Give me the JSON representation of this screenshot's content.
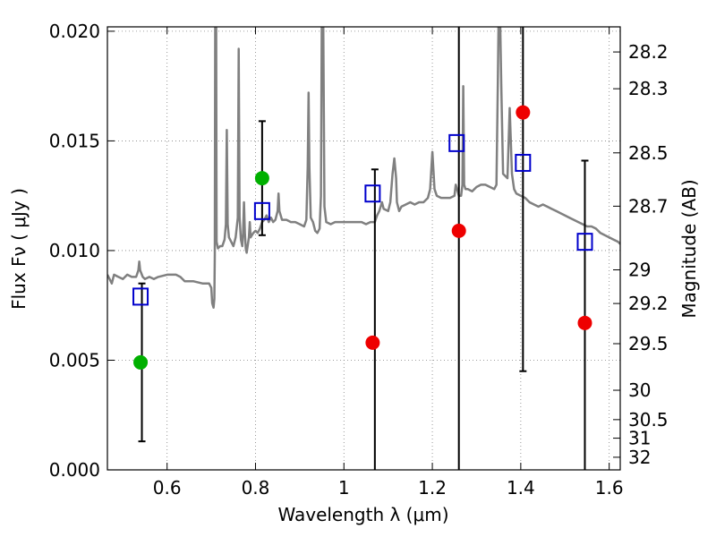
{
  "chart_data": {
    "type": "scatter",
    "xlabel": "Wavelength  λ (μm)",
    "ylabel": "Flux  Fν  ( μJy )",
    "y2label": "Magnitude (AB)",
    "xlim": [
      0.465,
      1.625
    ],
    "ylim": [
      0.0,
      0.0202
    ],
    "grid": true,
    "x_ticks": [
      0.6,
      0.8,
      1.0,
      1.2,
      1.4,
      1.6
    ],
    "x_tick_labels": [
      "0.6",
      "0.8",
      "1",
      "1.2",
      "1.4",
      "1.6"
    ],
    "y_ticks": [
      0.0,
      0.005,
      0.01,
      0.015,
      0.02
    ],
    "y_tick_labels": [
      "0.000",
      "0.005",
      "0.010",
      "0.015",
      "0.020"
    ],
    "mag_ticks": [
      {
        "mag": 28.2,
        "label": "28.2"
      },
      {
        "mag": 28.3,
        "label": "28.3"
      },
      {
        "mag": 28.5,
        "label": "28.5"
      },
      {
        "mag": 28.7,
        "label": "28.7"
      },
      {
        "mag": 29.0,
        "label": "29"
      },
      {
        "mag": 29.2,
        "label": "29.2"
      },
      {
        "mag": 29.5,
        "label": "29.5"
      },
      {
        "mag": 30.0,
        "label": "30"
      },
      {
        "mag": 30.5,
        "label": "30.5"
      },
      {
        "mag": 31.0,
        "label": "31"
      },
      {
        "mag": 32.0,
        "label": "32"
      }
    ],
    "colors": {
      "model": "#808080",
      "model_photometry": "#0000cc",
      "detection": "#00b000",
      "non_detection": "#ee0000",
      "errorbar": "#000000",
      "grid": "#808080"
    },
    "series": [
      {
        "name": "model spectrum",
        "type": "line",
        "points": [
          [
            0.465,
            0.0089
          ],
          [
            0.47,
            0.0087
          ],
          [
            0.475,
            0.0085
          ],
          [
            0.48,
            0.0089
          ],
          [
            0.49,
            0.0088
          ],
          [
            0.5,
            0.0087
          ],
          [
            0.51,
            0.0089
          ],
          [
            0.52,
            0.0088
          ],
          [
            0.53,
            0.0088
          ],
          [
            0.535,
            0.0091
          ],
          [
            0.537,
            0.0095
          ],
          [
            0.539,
            0.0091
          ],
          [
            0.545,
            0.0088
          ],
          [
            0.55,
            0.0087
          ],
          [
            0.56,
            0.0088
          ],
          [
            0.57,
            0.0087
          ],
          [
            0.58,
            0.0088
          ],
          [
            0.6,
            0.0089
          ],
          [
            0.62,
            0.0089
          ],
          [
            0.63,
            0.0088
          ],
          [
            0.64,
            0.0086
          ],
          [
            0.66,
            0.0086
          ],
          [
            0.68,
            0.0085
          ],
          [
            0.695,
            0.0085
          ],
          [
            0.7,
            0.0083
          ],
          [
            0.702,
            0.0076
          ],
          [
            0.705,
            0.0074
          ],
          [
            0.707,
            0.0078
          ],
          [
            0.708,
            0.0098
          ],
          [
            0.709,
            0.021
          ],
          [
            0.711,
            0.021
          ],
          [
            0.712,
            0.0104
          ],
          [
            0.715,
            0.0101
          ],
          [
            0.72,
            0.0102
          ],
          [
            0.725,
            0.0102
          ],
          [
            0.73,
            0.0105
          ],
          [
            0.733,
            0.0112
          ],
          [
            0.735,
            0.0155
          ],
          [
            0.737,
            0.0112
          ],
          [
            0.74,
            0.0106
          ],
          [
            0.745,
            0.0104
          ],
          [
            0.75,
            0.0102
          ],
          [
            0.755,
            0.0106
          ],
          [
            0.76,
            0.0115
          ],
          [
            0.762,
            0.0192
          ],
          [
            0.764,
            0.0115
          ],
          [
            0.767,
            0.0105
          ],
          [
            0.77,
            0.0102
          ],
          [
            0.772,
            0.0108
          ],
          [
            0.774,
            0.0122
          ],
          [
            0.776,
            0.0108
          ],
          [
            0.778,
            0.0101
          ],
          [
            0.78,
            0.0099
          ],
          [
            0.785,
            0.0106
          ],
          [
            0.787,
            0.0113
          ],
          [
            0.789,
            0.0106
          ],
          [
            0.795,
            0.0108
          ],
          [
            0.8,
            0.0109
          ],
          [
            0.805,
            0.0108
          ],
          [
            0.81,
            0.011
          ],
          [
            0.815,
            0.0113
          ],
          [
            0.82,
            0.0114
          ],
          [
            0.825,
            0.0116
          ],
          [
            0.83,
            0.0113
          ],
          [
            0.835,
            0.0115
          ],
          [
            0.84,
            0.0113
          ],
          [
            0.845,
            0.0114
          ],
          [
            0.85,
            0.0118
          ],
          [
            0.852,
            0.0126
          ],
          [
            0.854,
            0.0118
          ],
          [
            0.86,
            0.0114
          ],
          [
            0.87,
            0.0114
          ],
          [
            0.88,
            0.0113
          ],
          [
            0.89,
            0.0113
          ],
          [
            0.9,
            0.0112
          ],
          [
            0.91,
            0.0111
          ],
          [
            0.915,
            0.0114
          ],
          [
            0.918,
            0.0138
          ],
          [
            0.92,
            0.0172
          ],
          [
            0.922,
            0.0138
          ],
          [
            0.925,
            0.0115
          ],
          [
            0.93,
            0.0113
          ],
          [
            0.935,
            0.0109
          ],
          [
            0.94,
            0.0108
          ],
          [
            0.945,
            0.011
          ],
          [
            0.948,
            0.0125
          ],
          [
            0.95,
            0.021
          ],
          [
            0.953,
            0.021
          ],
          [
            0.956,
            0.012
          ],
          [
            0.96,
            0.0113
          ],
          [
            0.97,
            0.0112
          ],
          [
            0.98,
            0.0113
          ],
          [
            0.99,
            0.0113
          ],
          [
            1.0,
            0.0113
          ],
          [
            1.02,
            0.0113
          ],
          [
            1.04,
            0.0113
          ],
          [
            1.05,
            0.0112
          ],
          [
            1.06,
            0.0113
          ],
          [
            1.07,
            0.0113
          ],
          [
            1.075,
            0.0116
          ],
          [
            1.08,
            0.0118
          ],
          [
            1.083,
            0.012
          ],
          [
            1.086,
            0.0122
          ],
          [
            1.09,
            0.0119
          ],
          [
            1.1,
            0.0118
          ],
          [
            1.105,
            0.0122
          ],
          [
            1.11,
            0.0135
          ],
          [
            1.114,
            0.0142
          ],
          [
            1.118,
            0.0133
          ],
          [
            1.12,
            0.0122
          ],
          [
            1.125,
            0.0118
          ],
          [
            1.13,
            0.012
          ],
          [
            1.14,
            0.0121
          ],
          [
            1.15,
            0.0122
          ],
          [
            1.16,
            0.0121
          ],
          [
            1.17,
            0.0122
          ],
          [
            1.18,
            0.0122
          ],
          [
            1.19,
            0.0124
          ],
          [
            1.195,
            0.0128
          ],
          [
            1.2,
            0.0145
          ],
          [
            1.205,
            0.0128
          ],
          [
            1.21,
            0.0125
          ],
          [
            1.22,
            0.0124
          ],
          [
            1.23,
            0.0124
          ],
          [
            1.24,
            0.0124
          ],
          [
            1.25,
            0.0125
          ],
          [
            1.253,
            0.013
          ],
          [
            1.256,
            0.0128
          ],
          [
            1.26,
            0.0125
          ],
          [
            1.265,
            0.0125
          ],
          [
            1.268,
            0.013
          ],
          [
            1.27,
            0.0175
          ],
          [
            1.272,
            0.013
          ],
          [
            1.275,
            0.0128
          ],
          [
            1.28,
            0.0128
          ],
          [
            1.29,
            0.0127
          ],
          [
            1.3,
            0.0129
          ],
          [
            1.31,
            0.013
          ],
          [
            1.32,
            0.013
          ],
          [
            1.33,
            0.0129
          ],
          [
            1.34,
            0.0128
          ],
          [
            1.345,
            0.013
          ],
          [
            1.348,
            0.0175
          ],
          [
            1.35,
            0.021
          ],
          [
            1.353,
            0.021
          ],
          [
            1.356,
            0.0175
          ],
          [
            1.36,
            0.0135
          ],
          [
            1.37,
            0.0133
          ],
          [
            1.375,
            0.0165
          ],
          [
            1.38,
            0.0135
          ],
          [
            1.385,
            0.0128
          ],
          [
            1.39,
            0.0126
          ],
          [
            1.4,
            0.0125
          ],
          [
            1.41,
            0.0124
          ],
          [
            1.42,
            0.0122
          ],
          [
            1.43,
            0.0121
          ],
          [
            1.44,
            0.012
          ],
          [
            1.45,
            0.0121
          ],
          [
            1.46,
            0.012
          ],
          [
            1.47,
            0.0119
          ],
          [
            1.48,
            0.0118
          ],
          [
            1.49,
            0.0117
          ],
          [
            1.5,
            0.0116
          ],
          [
            1.51,
            0.0115
          ],
          [
            1.52,
            0.0114
          ],
          [
            1.53,
            0.0113
          ],
          [
            1.54,
            0.0112
          ],
          [
            1.55,
            0.0111
          ],
          [
            1.56,
            0.0111
          ],
          [
            1.57,
            0.011
          ],
          [
            1.58,
            0.0108
          ],
          [
            1.59,
            0.0107
          ],
          [
            1.6,
            0.0106
          ],
          [
            1.61,
            0.0105
          ],
          [
            1.62,
            0.0104
          ],
          [
            1.625,
            0.0103
          ]
        ]
      },
      {
        "name": "model photometry",
        "type": "scatter",
        "marker": "open-square",
        "points": [
          [
            0.54,
            0.0079
          ],
          [
            0.815,
            0.0118
          ],
          [
            1.065,
            0.0126
          ],
          [
            1.255,
            0.0149
          ],
          [
            1.405,
            0.014
          ],
          [
            1.545,
            0.0104
          ]
        ]
      },
      {
        "name": "detections",
        "type": "scatter",
        "marker": "filled-circle",
        "color_key": "detection",
        "points": [
          [
            0.54,
            0.0049
          ],
          [
            0.815,
            0.0133
          ]
        ]
      },
      {
        "name": "non-detections",
        "type": "scatter",
        "marker": "filled-circle",
        "color_key": "non_detection",
        "points": [
          [
            1.065,
            0.0058
          ],
          [
            1.26,
            0.0109
          ],
          [
            1.405,
            0.0163
          ],
          [
            1.545,
            0.0067
          ]
        ]
      },
      {
        "name": "error bars",
        "type": "errorbar",
        "bars": [
          {
            "x": 0.543,
            "low": 0.0013,
            "high": 0.0085
          },
          {
            "x": 0.815,
            "low": 0.0107,
            "high": 0.0159
          },
          {
            "x": 1.07,
            "low": 0.0,
            "high": 0.0137
          },
          {
            "x": 1.26,
            "low": 0.0,
            "high": 0.0202
          },
          {
            "x": 1.405,
            "low": 0.0045,
            "high": 0.0202
          },
          {
            "x": 1.545,
            "low": 0.0,
            "high": 0.0141
          }
        ]
      }
    ]
  }
}
